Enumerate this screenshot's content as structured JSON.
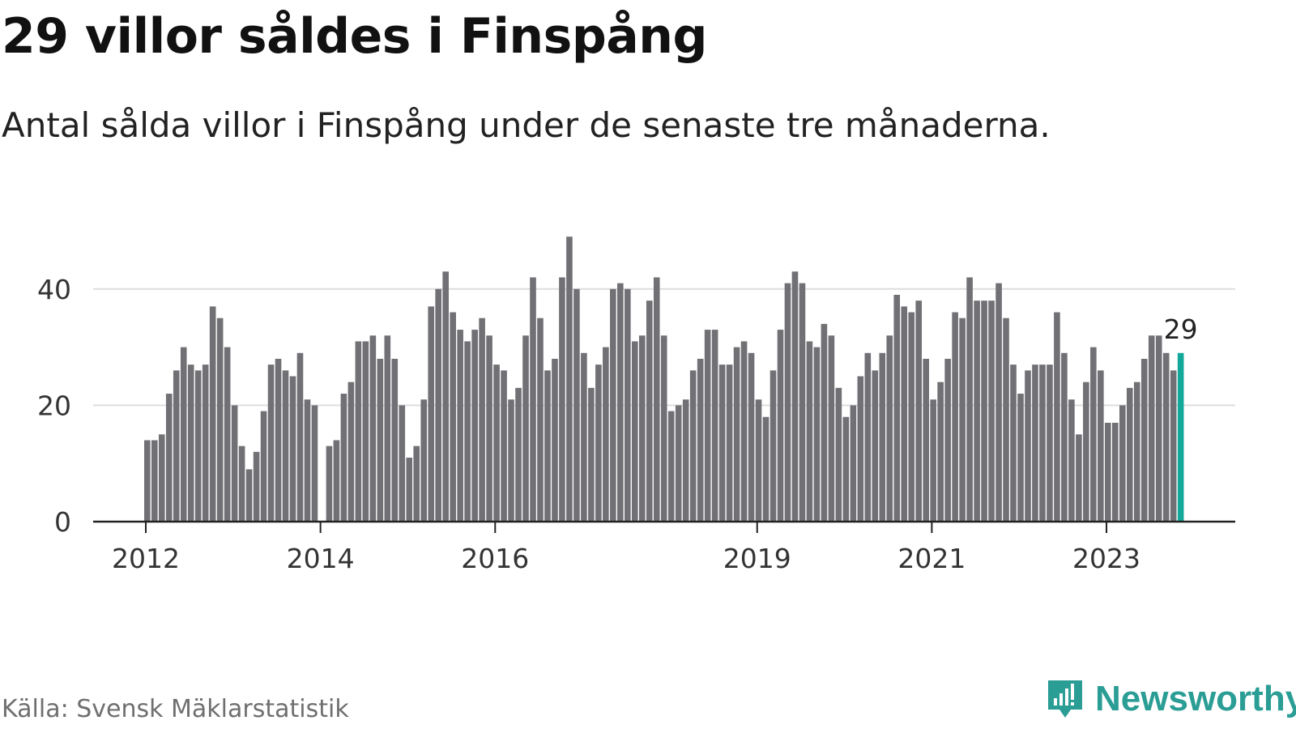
{
  "title": "29 villor såldes i Finspång",
  "subtitle": "Antal sålda villor i Finspång under de senaste tre månaderna.",
  "source": "Källa: Svensk Mäklarstatistik",
  "brand": {
    "name": "Newsworthy",
    "icon": "newsworthy-logo-icon"
  },
  "colors": {
    "bar": "#717075",
    "highlight": "#14a89a",
    "grid": "#dddddd",
    "axis": "#222222",
    "brand": "#2a9d95"
  },
  "chart_data": {
    "type": "bar",
    "title": "29 villor såldes i Finspång",
    "subtitle": "Antal sålda villor i Finspång under de senaste tre månaderna.",
    "xlabel": "",
    "ylabel": "",
    "ylim": [
      0,
      50
    ],
    "yticks": [
      0,
      20,
      40
    ],
    "xticks": [
      "2012",
      "2014",
      "2016",
      "2019",
      "2021",
      "2023"
    ],
    "grid": true,
    "first_period": "2012-01",
    "values": [
      14,
      14,
      15,
      22,
      26,
      30,
      27,
      26,
      27,
      37,
      35,
      30,
      20,
      13,
      9,
      12,
      19,
      27,
      28,
      26,
      25,
      29,
      21,
      20,
      null,
      13,
      14,
      22,
      24,
      31,
      31,
      32,
      28,
      32,
      28,
      20,
      11,
      13,
      21,
      37,
      40,
      43,
      36,
      33,
      31,
      33,
      35,
      32,
      27,
      26,
      21,
      23,
      32,
      42,
      35,
      26,
      28,
      42,
      49,
      40,
      29,
      23,
      27,
      30,
      40,
      41,
      40,
      31,
      32,
      38,
      42,
      32,
      19,
      20,
      21,
      26,
      28,
      33,
      33,
      27,
      27,
      30,
      31,
      29,
      21,
      18,
      26,
      33,
      41,
      43,
      41,
      31,
      30,
      34,
      32,
      23,
      18,
      20,
      25,
      29,
      26,
      29,
      32,
      39,
      37,
      36,
      38,
      28,
      21,
      24,
      28,
      36,
      35,
      42,
      38,
      38,
      38,
      41,
      35,
      27,
      22,
      26,
      27,
      27,
      27,
      36,
      29,
      21,
      15,
      24,
      30,
      26,
      17,
      17,
      20,
      23,
      24,
      28,
      32,
      32,
      29,
      26,
      29
    ],
    "highlight": {
      "value": 29,
      "label": "29"
    }
  }
}
